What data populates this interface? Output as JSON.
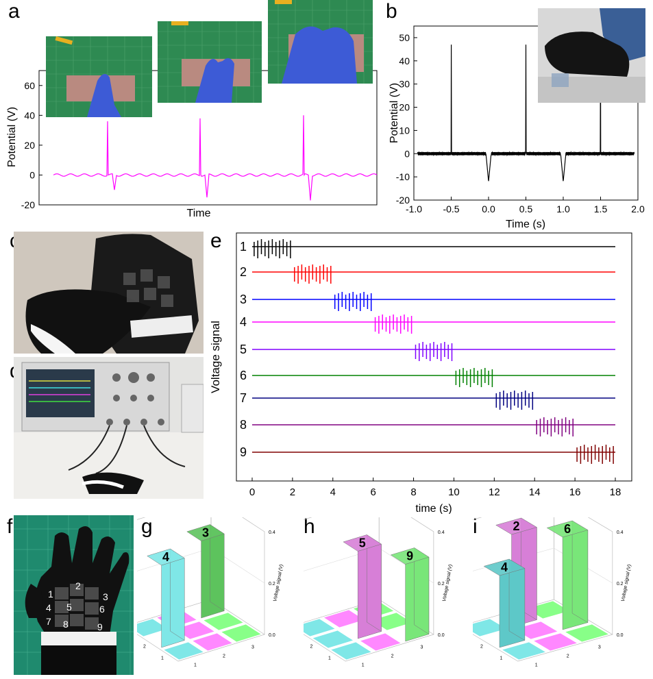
{
  "panel_labels": {
    "a": "a",
    "b": "b",
    "c": "c",
    "d": "d",
    "e": "e",
    "f": "f",
    "g": "g",
    "h": "h",
    "i": "i"
  },
  "chart_data": [
    {
      "id": "a",
      "type": "line",
      "xlabel": "Time",
      "ylabel": "Potential (V)",
      "ylim": [
        -20,
        70
      ],
      "yticks": [
        -20,
        0,
        20,
        40,
        60
      ],
      "tick_labels": [
        "-20",
        "0",
        "20",
        "40",
        "60"
      ],
      "color": "#ff00ff",
      "peaks": [
        {
          "positive": 36,
          "negative": -10
        },
        {
          "positive": 38,
          "negative": -15
        },
        {
          "positive": 40,
          "negative": -17
        }
      ]
    },
    {
      "id": "b",
      "type": "line",
      "xlabel": "Time (s)",
      "ylabel": "Potential (V)",
      "xlim": [
        -1.0,
        2.0
      ],
      "ylim": [
        -20,
        55
      ],
      "xticks": [
        -1.0,
        -0.5,
        0.0,
        0.5,
        1.0,
        1.5,
        2.0
      ],
      "x_tick_labels": [
        "-1.0",
        "-0.5",
        "0.0",
        "0.5",
        "1.0",
        "1.5",
        "2.0"
      ],
      "yticks": [
        -20,
        -10,
        0,
        10,
        20,
        30,
        40,
        50
      ],
      "y_tick_labels": [
        "-20",
        "-10",
        "0",
        "10",
        "20",
        "30",
        "40",
        "50"
      ],
      "color": "#000000",
      "positive_peaks": [
        {
          "x": -0.5,
          "y": 47
        },
        {
          "x": 0.5,
          "y": 47
        },
        {
          "x": 1.5,
          "y": 47
        }
      ],
      "negative_peaks": [
        {
          "x": 0.0,
          "y": -12
        },
        {
          "x": 1.0,
          "y": -12
        }
      ]
    },
    {
      "id": "e",
      "type": "line",
      "xlabel": "time (s)",
      "ylabel": "Voltage signal",
      "xlim": [
        0,
        18
      ],
      "xticks": [
        0,
        2,
        4,
        6,
        8,
        10,
        12,
        14,
        16,
        18
      ],
      "x_tick_labels": [
        "0",
        "2",
        "4",
        "6",
        "8",
        "10",
        "12",
        "14",
        "16",
        "18"
      ],
      "series": [
        {
          "name": "1",
          "color": "#000000",
          "active": [
            0,
            2
          ]
        },
        {
          "name": "2",
          "color": "#ff0000",
          "active": [
            2,
            4
          ]
        },
        {
          "name": "3",
          "color": "#0000ff",
          "active": [
            4,
            6
          ]
        },
        {
          "name": "4",
          "color": "#ff00ff",
          "active": [
            6,
            8
          ]
        },
        {
          "name": "5",
          "color": "#8000ff",
          "active": [
            8,
            10
          ]
        },
        {
          "name": "6",
          "color": "#008000",
          "active": [
            10,
            12
          ]
        },
        {
          "name": "7",
          "color": "#000080",
          "active": [
            12,
            14
          ]
        },
        {
          "name": "8",
          "color": "#800080",
          "active": [
            14,
            16
          ]
        },
        {
          "name": "9",
          "color": "#800000",
          "active": [
            16,
            18
          ]
        }
      ]
    },
    {
      "id": "g",
      "type": "bar3d",
      "zlabel": "Voltage signal (V)",
      "zticks": [
        "0.0",
        "0.2",
        "0.4"
      ],
      "grid_labels": [
        "1",
        "2",
        "3"
      ],
      "bars": [
        {
          "label": "4",
          "row": 2,
          "col": 1,
          "value": 0.32,
          "color": "#7fe7e7"
        },
        {
          "label": "3",
          "row": 3,
          "col": 3,
          "value": 0.3,
          "color": "#5ec35e"
        }
      ],
      "tiles": [
        {
          "row": 1,
          "col": 1,
          "color": "#7fe7e7"
        },
        {
          "row": 1,
          "col": 2,
          "color": "#ff88ff"
        },
        {
          "row": 1,
          "col": 3,
          "color": "#88ff88"
        },
        {
          "row": 2,
          "col": 2,
          "color": "#ff88ff"
        },
        {
          "row": 2,
          "col": 3,
          "color": "#88ff88"
        },
        {
          "row": 3,
          "col": 1,
          "color": "#7fe7e7"
        },
        {
          "row": 3,
          "col": 2,
          "color": "#ff88ff"
        }
      ]
    },
    {
      "id": "h",
      "type": "bar3d",
      "zlabel": "Voltage signal (V)",
      "zticks": [
        "0.0",
        "0.2",
        "0.4"
      ],
      "grid_labels": [
        "1",
        "2",
        "3"
      ],
      "bars": [
        {
          "label": "5",
          "row": 2,
          "col": 2,
          "value": 0.34,
          "color": "#d77fd7"
        },
        {
          "label": "9",
          "row": 1,
          "col": 3,
          "value": 0.3,
          "color": "#79e679"
        }
      ],
      "tiles": [
        {
          "row": 1,
          "col": 1,
          "color": "#7fe7e7"
        },
        {
          "row": 1,
          "col": 2,
          "color": "#ff88ff"
        },
        {
          "row": 2,
          "col": 1,
          "color": "#7fe7e7"
        },
        {
          "row": 2,
          "col": 3,
          "color": "#88ff88"
        },
        {
          "row": 3,
          "col": 1,
          "color": "#7fe7e7"
        },
        {
          "row": 3,
          "col": 2,
          "color": "#ff88ff"
        },
        {
          "row": 3,
          "col": 3,
          "color": "#88ff88"
        }
      ]
    },
    {
      "id": "i",
      "type": "bar3d",
      "zlabel": "Voltage signal (V)",
      "zticks": [
        "0.0",
        "0.2",
        "0.4"
      ],
      "grid_labels": [
        "1",
        "2",
        "3"
      ],
      "bars": [
        {
          "label": "2",
          "row": 3,
          "col": 2,
          "value": 0.36,
          "color": "#d77fd7"
        },
        {
          "label": "6",
          "row": 2,
          "col": 3,
          "value": 0.36,
          "color": "#79e679"
        },
        {
          "label": "4",
          "row": 2,
          "col": 1,
          "value": 0.28,
          "color": "#5ec8c8"
        }
      ],
      "tiles": [
        {
          "row": 1,
          "col": 1,
          "color": "#7fe7e7"
        },
        {
          "row": 1,
          "col": 2,
          "color": "#ff88ff"
        },
        {
          "row": 1,
          "col": 3,
          "color": "#88ff88"
        },
        {
          "row": 2,
          "col": 2,
          "color": "#ff88ff"
        },
        {
          "row": 3,
          "col": 1,
          "color": "#7fe7e7"
        },
        {
          "row": 3,
          "col": 3,
          "color": "#88ff88"
        }
      ]
    }
  ],
  "glove_f": {
    "sensor_labels": [
      "1",
      "2",
      "3",
      "4",
      "5",
      "6",
      "7",
      "8",
      "9"
    ]
  }
}
